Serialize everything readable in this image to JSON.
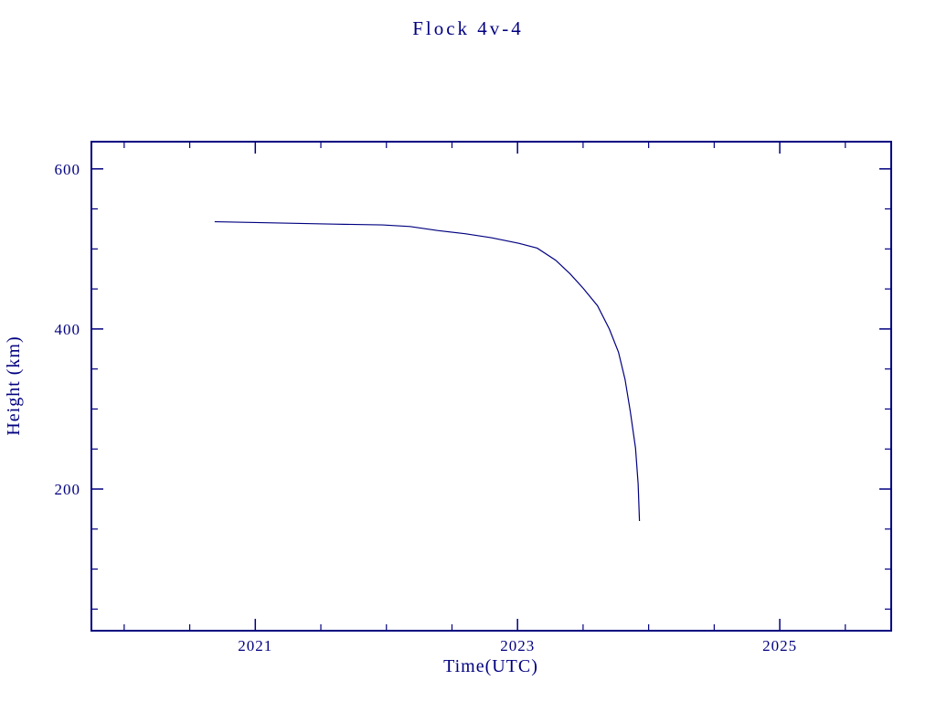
{
  "title": "Flock 4v-4",
  "colors": {
    "accent": "#000080",
    "background": "#ffffff"
  },
  "chart_data": {
    "type": "line",
    "title": "Flock 4v-4",
    "xlabel": "Time(UTC)",
    "ylabel": "Height (km)",
    "xlim": [
      2019.75,
      2025.85
    ],
    "ylim": [
      23,
      634
    ],
    "x_ticks_major": [
      2021,
      2023,
      2025
    ],
    "x_tick_labels": [
      "2021",
      "2023",
      "2025"
    ],
    "x_minor_step": 0.5,
    "y_ticks_major": [
      200,
      400,
      600
    ],
    "y_tick_labels": [
      "200",
      "400",
      "600"
    ],
    "y_minor_step": 50,
    "grid": false,
    "legend": "none",
    "line_color": "#000080",
    "series": [
      {
        "name": "height",
        "x": [
          2020.69,
          2021.0,
          2021.3,
          2021.6,
          2021.97,
          2022.18,
          2022.39,
          2022.6,
          2022.8,
          2023.01,
          2023.15,
          2023.29,
          2023.4,
          2023.5,
          2023.61,
          2023.7,
          2023.77,
          2023.82,
          2023.86,
          2023.9,
          2023.92,
          2023.93
        ],
        "y": [
          534,
          533,
          532,
          531,
          530,
          528,
          523,
          519,
          514,
          507,
          501,
          486,
          469,
          451,
          429,
          400,
          371,
          337,
          297,
          251,
          206,
          160
        ]
      }
    ]
  }
}
